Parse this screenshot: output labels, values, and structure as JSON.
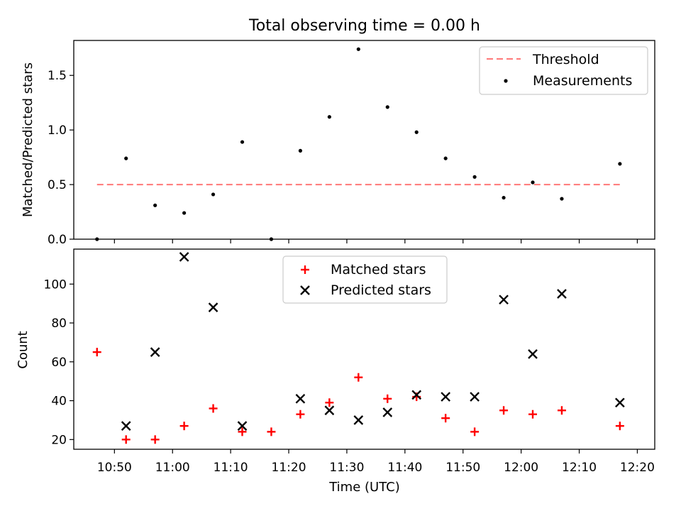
{
  "title": "Total observing time = 0.00 h",
  "chart_data": [
    {
      "type": "scatter",
      "ylabel": "Matched/Predicted stars",
      "xlim": [
        "10:43",
        "12:23"
      ],
      "ylim": [
        0,
        1.82
      ],
      "yticks": [
        0.0,
        0.5,
        1.0,
        1.5
      ],
      "ytick_labels": [
        "0.0",
        "0.5",
        "1.0",
        "1.5"
      ],
      "legend_position": "top-right",
      "threshold": {
        "name": "Threshold",
        "x": [
          "10:47",
          "12:17"
        ],
        "y": 0.5,
        "color": "#ff7f7f",
        "style": "dashed"
      },
      "series": [
        {
          "name": "Measurements",
          "color": "#000000",
          "marker": "dot",
          "x": [
            "10:47",
            "10:52",
            "10:57",
            "11:02",
            "11:07",
            "11:12",
            "11:17",
            "11:22",
            "11:27",
            "11:32",
            "11:37",
            "11:42",
            "11:47",
            "11:52",
            "11:57",
            "12:02",
            "12:07",
            "12:17"
          ],
          "y": [
            0.0,
            0.74,
            0.31,
            0.24,
            0.41,
            0.89,
            0.0,
            0.81,
            1.12,
            1.74,
            1.21,
            0.98,
            0.74,
            0.57,
            0.38,
            0.52,
            0.37,
            0.69
          ]
        }
      ]
    },
    {
      "type": "scatter",
      "xlabel": "Time (UTC)",
      "ylabel": "Count",
      "xlim": [
        "10:43",
        "12:23"
      ],
      "ylim": [
        15,
        118
      ],
      "xticks": [
        "10:50",
        "11:00",
        "11:10",
        "11:20",
        "11:30",
        "11:40",
        "11:50",
        "12:00",
        "12:10",
        "12:20"
      ],
      "yticks": [
        20,
        40,
        60,
        80,
        100
      ],
      "ytick_labels": [
        "20",
        "40",
        "60",
        "80",
        "100"
      ],
      "legend_position": "top-center",
      "series": [
        {
          "name": "Matched stars",
          "color": "#ff0000",
          "marker": "plus",
          "x": [
            "10:47",
            "10:52",
            "10:57",
            "11:02",
            "11:07",
            "11:12",
            "11:17",
            "11:22",
            "11:27",
            "11:32",
            "11:37",
            "11:42",
            "11:47",
            "11:52",
            "11:57",
            "12:02",
            "12:07",
            "12:17"
          ],
          "y": [
            65,
            20,
            20,
            27,
            36,
            24,
            24,
            33,
            39,
            52,
            41,
            42,
            31,
            24,
            35,
            33,
            35,
            27
          ]
        },
        {
          "name": "Predicted stars",
          "color": "#000000",
          "marker": "x",
          "x": [
            "10:52",
            "10:57",
            "11:02",
            "11:07",
            "11:12",
            "11:22",
            "11:27",
            "11:32",
            "11:37",
            "11:42",
            "11:47",
            "11:52",
            "11:57",
            "12:02",
            "12:07",
            "12:17"
          ],
          "y": [
            27,
            65,
            114,
            88,
            27,
            41,
            35,
            30,
            34,
            43,
            42,
            42,
            92,
            64,
            95,
            39
          ]
        }
      ]
    }
  ]
}
